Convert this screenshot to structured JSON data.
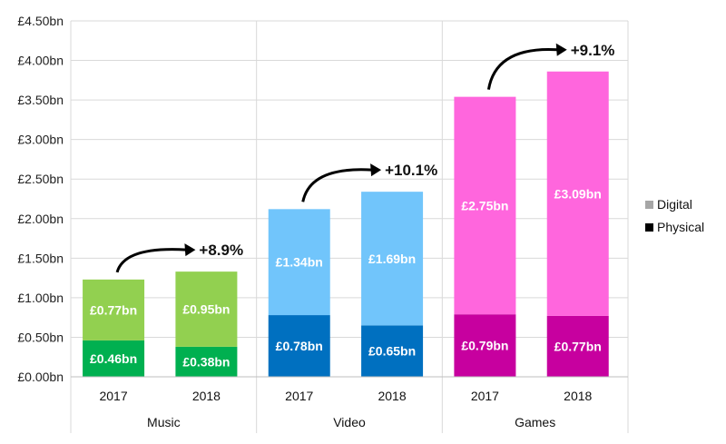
{
  "chart_data": {
    "type": "bar",
    "stacked": true,
    "y_axis": {
      "ylim": [
        0,
        4.5
      ],
      "ticks": [
        0,
        0.5,
        1.0,
        1.5,
        2.0,
        2.5,
        3.0,
        3.5,
        4.0,
        4.5
      ],
      "tick_labels": [
        "£0.00bn",
        "£0.50bn",
        "£1.00bn",
        "£1.50bn",
        "£2.00bn",
        "£2.50bn",
        "£3.00bn",
        "£3.50bn",
        "£4.00bn",
        "£4.50bn"
      ]
    },
    "groups": [
      {
        "name": "Music",
        "growth": "+8.9%",
        "physical_color": "#00b050",
        "digital_color": "#92d050",
        "bars": [
          {
            "year": "2017",
            "physical": 0.46,
            "digital": 0.77,
            "physical_label": "£0.46bn",
            "digital_label": "£0.77bn"
          },
          {
            "year": "2018",
            "physical": 0.38,
            "digital": 0.95,
            "physical_label": "£0.38bn",
            "digital_label": "£0.95bn"
          }
        ]
      },
      {
        "name": "Video",
        "growth": "+10.1%",
        "physical_color": "#0070c0",
        "digital_color": "#71c5fb",
        "bars": [
          {
            "year": "2017",
            "physical": 0.78,
            "digital": 1.34,
            "physical_label": "£0.78bn",
            "digital_label": "£1.34bn"
          },
          {
            "year": "2018",
            "physical": 0.65,
            "digital": 1.69,
            "physical_label": "£0.65bn",
            "digital_label": "£1.69bn"
          }
        ]
      },
      {
        "name": "Games",
        "growth": "+9.1%",
        "physical_color": "#c7009f",
        "digital_color": "#ff66dd",
        "bars": [
          {
            "year": "2017",
            "physical": 0.79,
            "digital": 2.75,
            "physical_label": "£0.79bn",
            "digital_label": "£2.75bn"
          },
          {
            "year": "2018",
            "physical": 0.77,
            "digital": 3.09,
            "physical_label": "£0.77bn",
            "digital_label": "£3.09bn"
          }
        ]
      }
    ],
    "legend": {
      "position": "right",
      "entries": [
        {
          "label": "Digital",
          "color": "#a6a6a6"
        },
        {
          "label": "Physical",
          "color": "#000000"
        }
      ]
    }
  }
}
